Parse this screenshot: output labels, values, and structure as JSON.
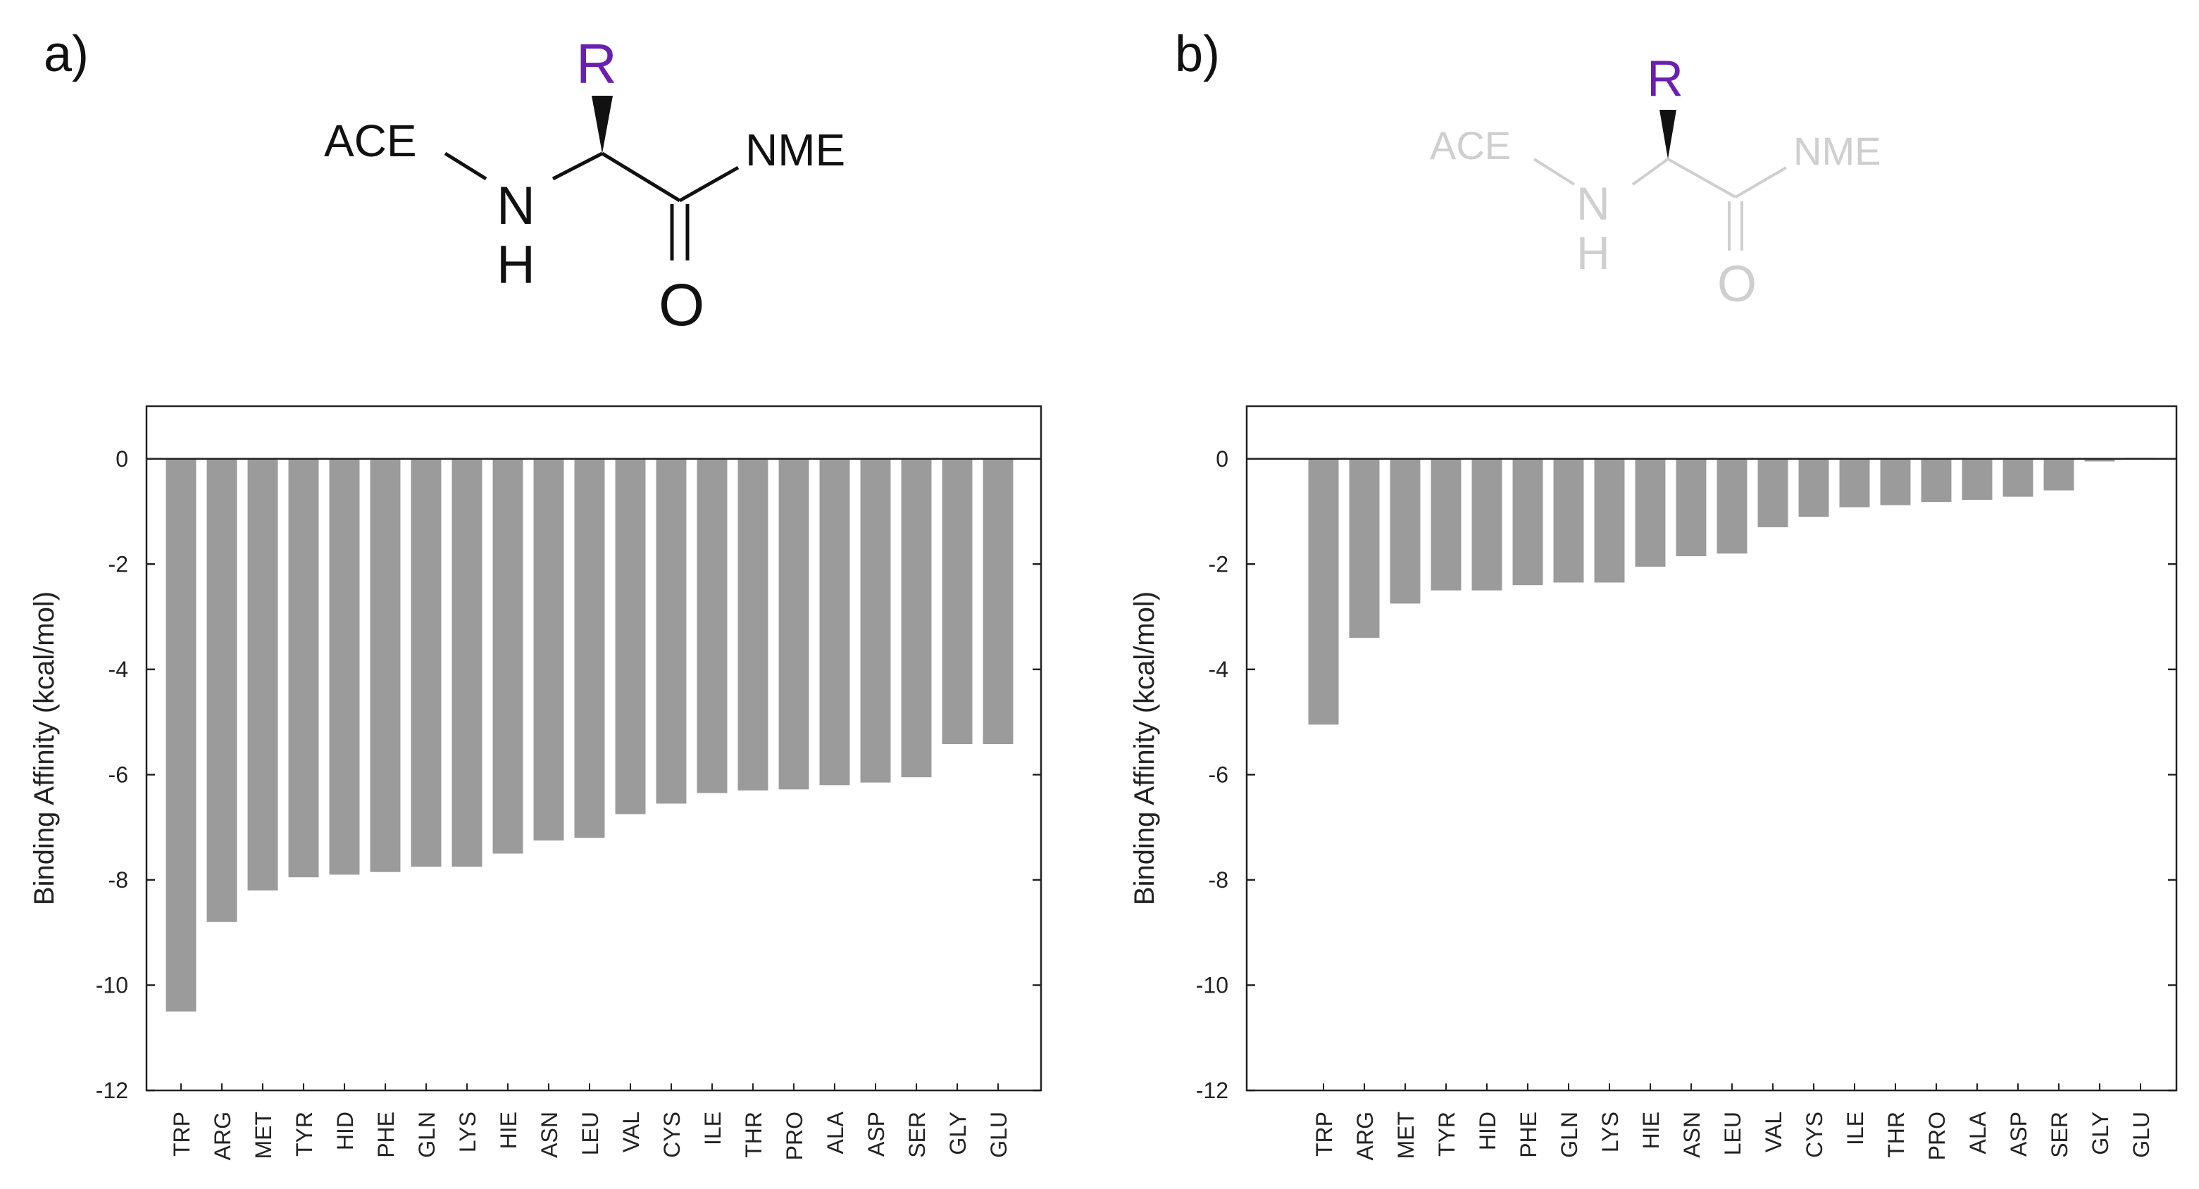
{
  "panels": {
    "a": {
      "label": "a)"
    },
    "b": {
      "label": "b)"
    }
  },
  "molecule": {
    "r_group": "R",
    "n": "N",
    "h": "H",
    "o": "O",
    "ace": "ACE",
    "nme": "NME"
  },
  "colors": {
    "bar": "#9b9b9b",
    "axis": "#222222",
    "r_group": "#6a1fb0",
    "molecule_a": "#111111",
    "molecule_b": "#cfcfcf"
  },
  "chart_data": [
    {
      "type": "bar",
      "panel": "a",
      "title": "",
      "xlabel": "",
      "ylabel": "Binding Affinity (kcal/mol)",
      "ylim": [
        -12,
        1
      ],
      "yticks": [
        0,
        -2,
        -4,
        -6,
        -8,
        -10,
        -12
      ],
      "categories": [
        "TRP",
        "ARG",
        "MET",
        "TYR",
        "HID",
        "PHE",
        "GLN",
        "LYS",
        "HIE",
        "ASN",
        "LEU",
        "VAL",
        "CYS",
        "ILE",
        "THR",
        "PRO",
        "ALA",
        "ASP",
        "SER",
        "GLY",
        "GLU"
      ],
      "values": [
        -10.5,
        -8.8,
        -8.2,
        -7.95,
        -7.9,
        -7.85,
        -7.75,
        -7.75,
        -7.5,
        -7.25,
        -7.2,
        -6.75,
        -6.55,
        -6.35,
        -6.3,
        -6.28,
        -6.2,
        -6.15,
        -6.05,
        -5.42,
        -5.42
      ]
    },
    {
      "type": "bar",
      "panel": "b",
      "title": "",
      "xlabel": "",
      "ylabel": "Binding Affinity (kcal/mol)",
      "ylim": [
        -12,
        1
      ],
      "yticks": [
        0,
        -2,
        -4,
        -6,
        -8,
        -10,
        -12
      ],
      "categories": [
        "TRP",
        "ARG",
        "MET",
        "TYR",
        "HID",
        "PHE",
        "GLN",
        "LYS",
        "HIE",
        "ASN",
        "LEU",
        "VAL",
        "CYS",
        "ILE",
        "THR",
        "PRO",
        "ALA",
        "ASP",
        "SER",
        "GLY",
        "GLU"
      ],
      "values": [
        -5.05,
        -3.4,
        -2.75,
        -2.5,
        -2.5,
        -2.4,
        -2.35,
        -2.35,
        -2.05,
        -1.85,
        -1.8,
        -1.3,
        -1.1,
        -0.92,
        -0.88,
        -0.82,
        -0.78,
        -0.72,
        -0.6,
        -0.05,
        0.02
      ]
    }
  ]
}
